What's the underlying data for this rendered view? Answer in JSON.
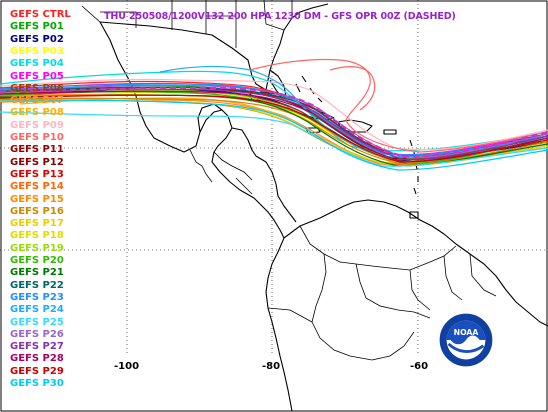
{
  "title": "THU 250508/1200V132  200 HPA 1230 DM - GFS OPR 00Z (DASHED)",
  "colors": {
    "title": "#9922cc",
    "land": "#000000",
    "background": "#ffffff",
    "grid": "#000000"
  },
  "legend": [
    {
      "label": "GEFS CTRL",
      "color": "#ff2020"
    },
    {
      "label": "GEFS P01",
      "color": "#00aa00"
    },
    {
      "label": "GEFS P02",
      "color": "#000080"
    },
    {
      "label": "GEFS P03",
      "color": "#ffff00"
    },
    {
      "label": "GEFS P04",
      "color": "#00dddd"
    },
    {
      "label": "GEFS P05",
      "color": "#ff00ff"
    },
    {
      "label": "GEFS P06",
      "color": "#8b4513"
    },
    {
      "label": "GEFS P07",
      "color": "#ff8c3c"
    },
    {
      "label": "GEFS P08",
      "color": "#ffb000"
    },
    {
      "label": "GEFS P09",
      "color": "#ffb6c1"
    },
    {
      "label": "GEFS P10",
      "color": "#ff6666"
    },
    {
      "label": "GEFS P11",
      "color": "#990000"
    },
    {
      "label": "GEFS P12",
      "color": "#880000"
    },
    {
      "label": "GEFS P13",
      "color": "#dd0000"
    },
    {
      "label": "GEFS P14",
      "color": "#ff6600"
    },
    {
      "label": "GEFS P15",
      "color": "#ff8800"
    },
    {
      "label": "GEFS P16",
      "color": "#cc8800"
    },
    {
      "label": "GEFS P17",
      "color": "#eecc00"
    },
    {
      "label": "GEFS P18",
      "color": "#dddd00"
    },
    {
      "label": "GEFS P19",
      "color": "#99dd00"
    },
    {
      "label": "GEFS P20",
      "color": "#33bb00"
    },
    {
      "label": "GEFS P21",
      "color": "#007700"
    },
    {
      "label": "GEFS P22",
      "color": "#006666"
    },
    {
      "label": "GEFS P23",
      "color": "#1e90ff"
    },
    {
      "label": "GEFS P24",
      "color": "#22aaff"
    },
    {
      "label": "GEFS P25",
      "color": "#33ddff"
    },
    {
      "label": "GEFS P26",
      "color": "#9966cc"
    },
    {
      "label": "GEFS P27",
      "color": "#8833aa"
    },
    {
      "label": "GEFS P28",
      "color": "#aa0066"
    },
    {
      "label": "GEFS P29",
      "color": "#cc0000"
    },
    {
      "label": "GEFS P30",
      "color": "#00ccee"
    }
  ],
  "longitude_labels": [
    "-100",
    "-80",
    "-60"
  ],
  "logo": {
    "text": "NOAA",
    "icon": "noaa-logo-icon"
  }
}
